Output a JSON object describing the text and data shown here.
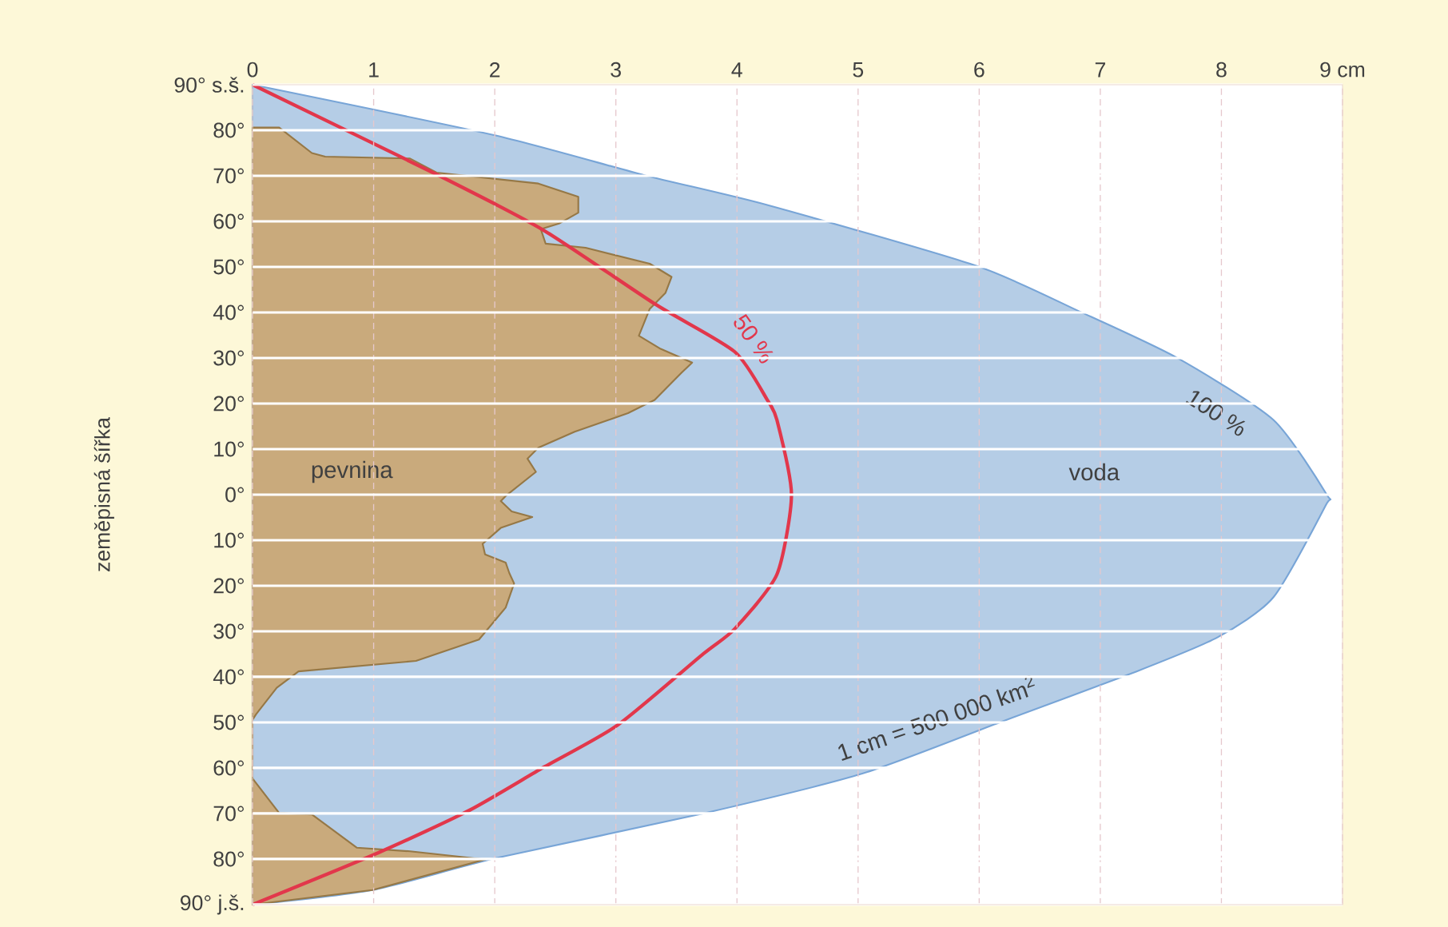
{
  "chart_data": {
    "type": "area",
    "orientation": "horizontal",
    "ylabel": "zeměpisná šířka",
    "xlim": [
      0,
      9
    ],
    "xticks": [
      0,
      1,
      2,
      3,
      4,
      5,
      6,
      7,
      8,
      {
        "value": 9,
        "label": "9 cm"
      }
    ],
    "ylim": [
      -90,
      90
    ],
    "yticks": [
      {
        "value": 90,
        "label": "90° s.š."
      },
      {
        "value": 80,
        "label": "80°"
      },
      {
        "value": 70,
        "label": "70°"
      },
      {
        "value": 60,
        "label": "60°"
      },
      {
        "value": 50,
        "label": "50°"
      },
      {
        "value": 40,
        "label": "40°"
      },
      {
        "value": 30,
        "label": "30°"
      },
      {
        "value": 20,
        "label": "20°"
      },
      {
        "value": 10,
        "label": "10°"
      },
      {
        "value": 0,
        "label": "0°"
      },
      {
        "value": -10,
        "label": "10°"
      },
      {
        "value": -20,
        "label": "20°"
      },
      {
        "value": -30,
        "label": "30°"
      },
      {
        "value": -40,
        "label": "40°"
      },
      {
        "value": -50,
        "label": "50°"
      },
      {
        "value": -60,
        "label": "60°"
      },
      {
        "value": -70,
        "label": "70°"
      },
      {
        "value": -80,
        "label": "80°"
      },
      {
        "value": -90,
        "label": "90° j.š."
      }
    ],
    "grid": true,
    "series": [
      {
        "color": "#b5cde6",
        "x": [
          90,
          78.9,
          70.1,
          63.6,
          50.2,
          40.2,
          30.1,
          16.4,
          0,
          -2.4,
          -22.5,
          -31.3,
          -38.8,
          -50,
          -61.2,
          -70,
          -79.8,
          -86.8,
          -90
        ],
        "values": [
          0,
          2.0,
          3.24,
          4.25,
          5.98,
          6.83,
          7.63,
          8.43,
          8.87,
          8.86,
          8.43,
          7.97,
          7.3,
          6.17,
          5.04,
          3.72,
          2.01,
          0.99,
          0
        ]
      },
      {
        "color": "#c9aa7c",
        "x": [
          80.6,
          80.6,
          75,
          74.2,
          73.8,
          70.7,
          68.3,
          65.4,
          61.9,
          59.5,
          58.3,
          55.1,
          54.2,
          50.7,
          47.8,
          44.3,
          40.8,
          34.9,
          32,
          29,
          26.7,
          20.8,
          17.9,
          13.8,
          10.3,
          7.9,
          5,
          -0.3,
          -1.4,
          -3.7,
          -4.9,
          -7.3,
          -10.8,
          -13.1,
          -14.9,
          -17.2,
          -19.5,
          -24.8,
          -31.8,
          -36.5,
          -38.8,
          -42.4,
          -48.2,
          -49.4,
          -62.3,
          -69.9,
          -70.2,
          -77.5,
          -78.3,
          -80.1,
          -86.8,
          -90
        ],
        "values": [
          0,
          0.22,
          0.49,
          0.6,
          1.3,
          1.52,
          2.36,
          2.69,
          2.69,
          2.53,
          2.38,
          2.42,
          2.75,
          3.28,
          3.46,
          3.41,
          3.28,
          3.19,
          3.37,
          3.63,
          3.54,
          3.32,
          3.1,
          2.66,
          2.36,
          2.27,
          2.34,
          2.09,
          2.05,
          2.14,
          2.31,
          2.05,
          1.9,
          1.92,
          2.09,
          2.12,
          2.16,
          2.09,
          1.87,
          1.35,
          0.38,
          0.2,
          0.03,
          0,
          0,
          0.22,
          0.49,
          0.86,
          1.3,
          1.92,
          0.99,
          0
        ]
      },
      {
        "type": "line",
        "color": "#e2374b",
        "x": [
          90,
          70.3,
          58.1,
          41.9,
          31.4,
          20.8,
          16.4,
          0,
          -17.5,
          -29.5,
          -35,
          -50.5,
          -59.9,
          -69.3,
          -78.6,
          -90
        ],
        "values": [
          0,
          1.52,
          2.4,
          3.32,
          3.98,
          4.25,
          4.33,
          4.45,
          4.33,
          3.98,
          3.72,
          3.02,
          2.4,
          1.79,
          1.04,
          0
        ]
      }
    ],
    "annotations": [
      "pevnina",
      "voda",
      {
        "text": "50 %",
        "x": 3.98,
        "y": 31.4
      },
      "100 %",
      "1 cm = 500 000 km$^{2}$"
    ]
  }
}
